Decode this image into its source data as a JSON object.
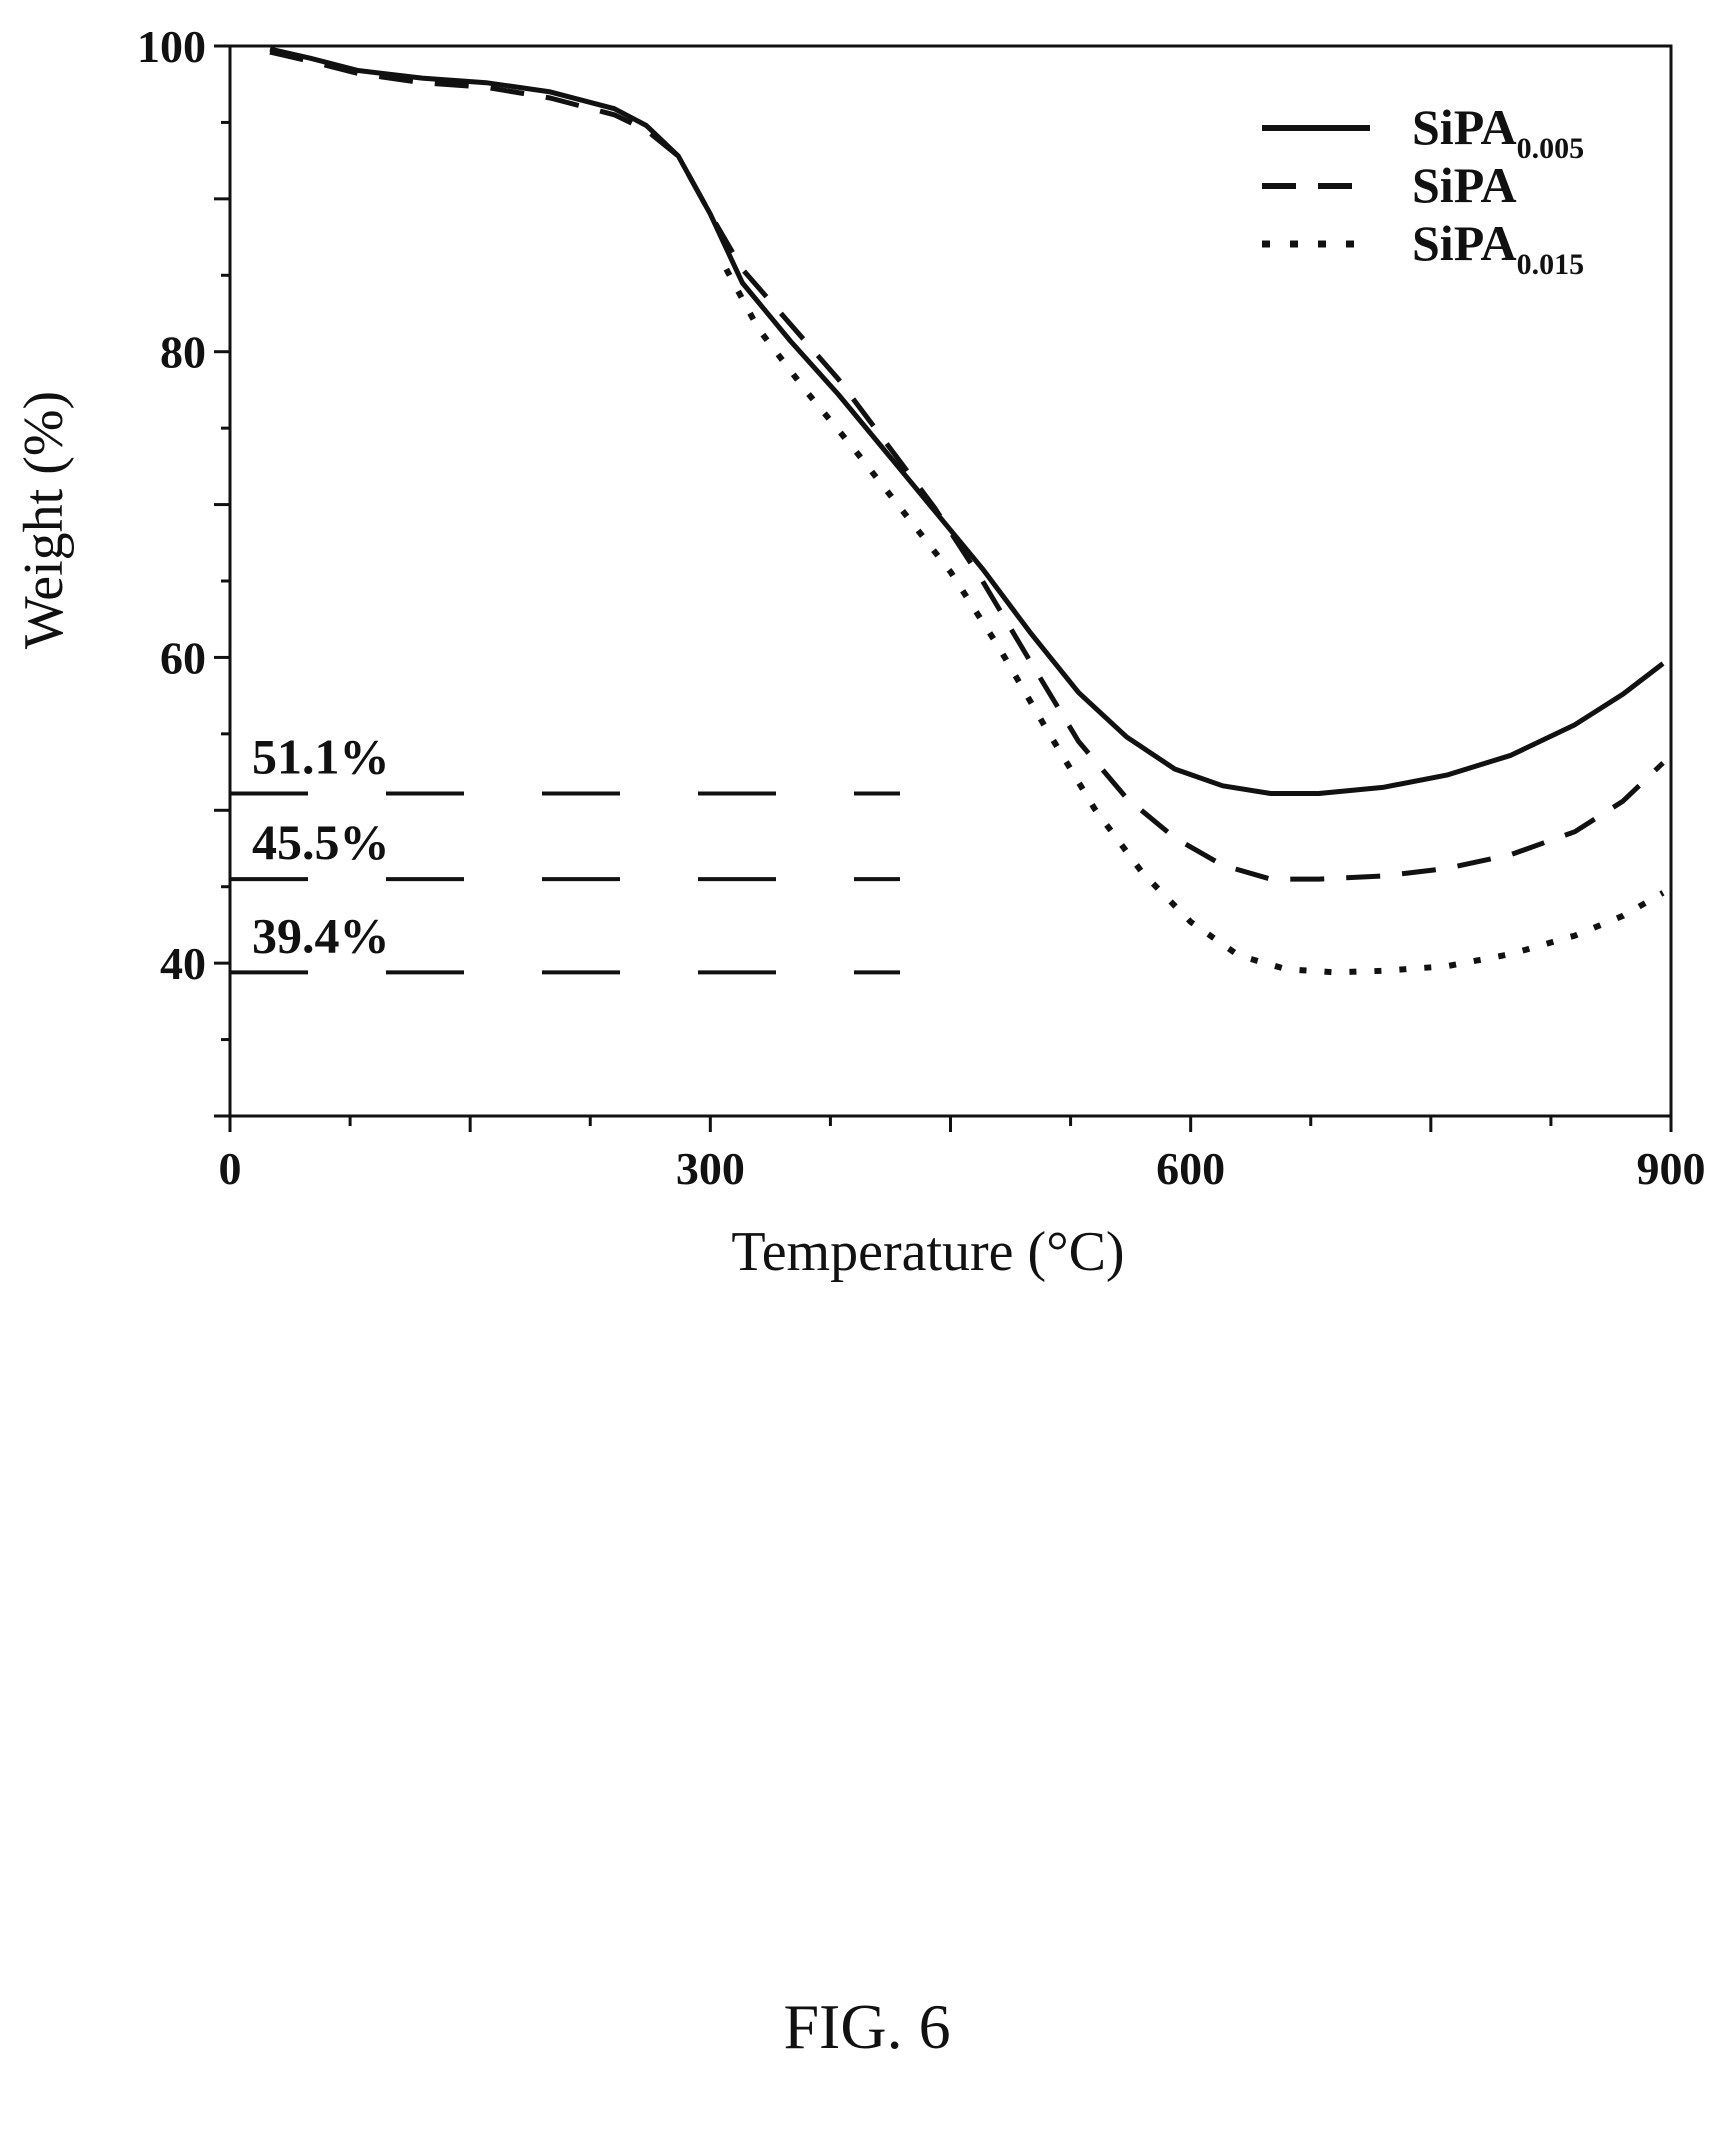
{
  "figure_caption": "FIG. 6",
  "chart_data": {
    "type": "line",
    "xlabel": "Temperature (°C)",
    "ylabel": "Weight (%)",
    "xlim": [
      0,
      900
    ],
    "ylim": [
      30,
      100
    ],
    "x_ticks": [
      0,
      300,
      600,
      900
    ],
    "y_ticks": [
      40,
      60,
      80,
      100
    ],
    "x_tick_labels": [
      "0",
      "300",
      "600",
      "900"
    ],
    "y_tick_labels": [
      "40",
      "60",
      "80",
      "100"
    ],
    "grid": false,
    "legend_position": "top-right",
    "series": [
      {
        "name": "SiPA",
        "name_subscript": "0.005",
        "style": "solid",
        "x": [
          25,
          50,
          80,
          120,
          160,
          200,
          240,
          260,
          280,
          300,
          320,
          350,
          380,
          410,
          440,
          470,
          500,
          530,
          560,
          590,
          620,
          650,
          680,
          720,
          760,
          800,
          840,
          870,
          895
        ],
        "y": [
          99.8,
          99.2,
          98.4,
          97.9,
          97.6,
          97.0,
          95.9,
          94.8,
          92.8,
          89.0,
          84.5,
          80.7,
          77.2,
          73.4,
          69.6,
          65.8,
          61.6,
          57.7,
          54.8,
          52.7,
          51.6,
          51.1,
          51.1,
          51.5,
          52.3,
          53.6,
          55.6,
          57.6,
          59.6
        ]
      },
      {
        "name": "SiPA",
        "name_subscript": "",
        "style": "dashed",
        "x": [
          25,
          50,
          80,
          120,
          160,
          200,
          240,
          260,
          280,
          300,
          320,
          350,
          380,
          410,
          440,
          470,
          500,
          530,
          560,
          590,
          620,
          650,
          680,
          720,
          760,
          800,
          840,
          870,
          895
        ],
        "y": [
          99.6,
          99.0,
          98.2,
          97.6,
          97.3,
          96.6,
          95.5,
          94.5,
          92.8,
          89.0,
          85.4,
          81.8,
          78.2,
          74.0,
          69.8,
          65.0,
          59.7,
          54.5,
          50.8,
          48.2,
          46.4,
          45.5,
          45.5,
          45.7,
          46.2,
          47.1,
          48.6,
          50.6,
          53.1
        ]
      },
      {
        "name": "SiPA",
        "name_subscript": "0.015",
        "style": "dotted",
        "x": [
          310,
          330,
          360,
          390,
          420,
          450,
          480,
          510,
          540,
          570,
          600,
          630,
          660,
          690,
          720,
          760,
          800,
          840,
          870,
          895
        ],
        "y": [
          85.4,
          81.5,
          77.4,
          73.6,
          69.6,
          65.6,
          60.7,
          55.3,
          50.1,
          45.9,
          42.7,
          40.5,
          39.6,
          39.4,
          39.5,
          39.8,
          40.6,
          41.8,
          43.1,
          44.6
        ]
      }
    ],
    "reference_lines": [
      {
        "label": "51.1%",
        "y": 51.1
      },
      {
        "label": "45.5%",
        "y": 45.5
      },
      {
        "label": "39.4%",
        "y": 39.4
      }
    ]
  }
}
